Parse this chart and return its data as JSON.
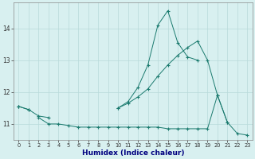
{
  "xlabel": "Humidex (Indice chaleur)",
  "x": [
    0,
    1,
    2,
    3,
    4,
    5,
    6,
    7,
    8,
    9,
    10,
    11,
    12,
    13,
    14,
    15,
    16,
    17,
    18,
    19,
    20,
    21,
    22,
    23
  ],
  "line1": [
    11.55,
    11.45,
    null,
    null,
    null,
    null,
    null,
    null,
    null,
    null,
    11.5,
    11.7,
    12.15,
    12.85,
    14.1,
    14.55,
    13.55,
    13.1,
    13.0,
    null,
    null,
    null,
    null,
    null
  ],
  "line2": [
    11.55,
    11.45,
    11.25,
    11.2,
    null,
    null,
    null,
    null,
    null,
    null,
    11.5,
    11.65,
    11.85,
    12.1,
    12.5,
    12.85,
    13.15,
    13.4,
    13.6,
    13.0,
    11.9,
    11.05,
    null,
    null
  ],
  "line3": [
    11.55,
    null,
    11.2,
    11.0,
    11.0,
    10.95,
    10.9,
    10.9,
    10.9,
    10.9,
    10.9,
    10.9,
    10.9,
    10.9,
    10.9,
    10.85,
    10.85,
    10.85,
    10.85,
    10.85,
    11.9,
    11.05,
    10.7,
    10.65
  ],
  "line_color": "#1a7a6e",
  "bg_color": "#d8f0f0",
  "grid_color": "#b8dada",
  "ylim": [
    10.5,
    14.8
  ],
  "xlim": [
    -0.5,
    23.5
  ],
  "yticks": [
    11,
    12,
    13,
    14
  ],
  "xticks": [
    0,
    1,
    2,
    3,
    4,
    5,
    6,
    7,
    8,
    9,
    10,
    11,
    12,
    13,
    14,
    15,
    16,
    17,
    18,
    19,
    20,
    21,
    22,
    23
  ]
}
